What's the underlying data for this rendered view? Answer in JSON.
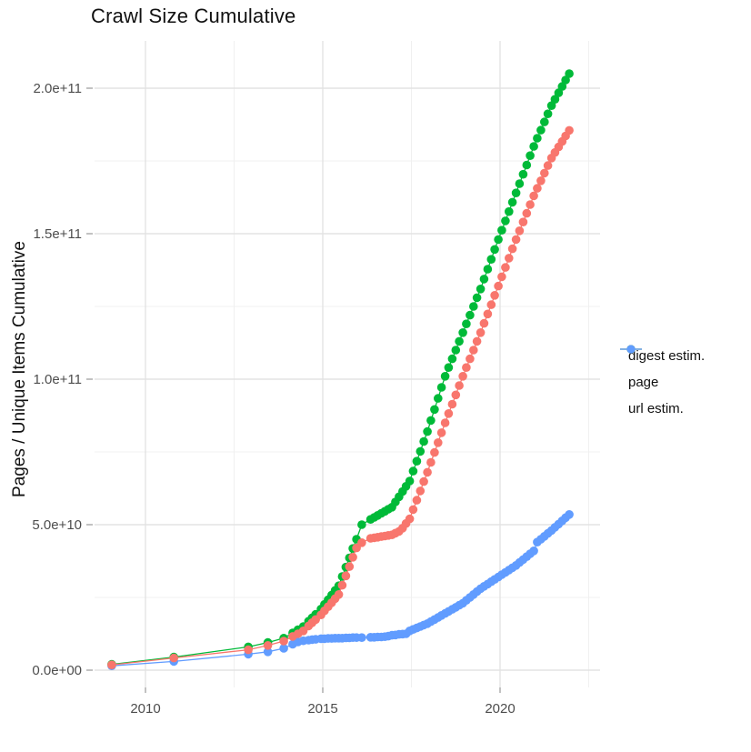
{
  "title": "Crawl Size Cumulative",
  "axes": {
    "y_label": "Pages / Unique Items Cumulative",
    "x_label": "",
    "x_ticks": [
      {
        "label": "2010",
        "year": 2010
      },
      {
        "label": "2015",
        "year": 2015
      },
      {
        "label": "2020",
        "year": 2020
      }
    ],
    "x_minor": [
      2012.5,
      2017.5,
      2022.5
    ],
    "y_ticks": [
      {
        "label": "0.0e+00",
        "value_e9": 0
      },
      {
        "label": "5.0e+10",
        "value_e9": 50
      },
      {
        "label": "1.0e+11",
        "value_e9": 100
      },
      {
        "label": "1.5e+11",
        "value_e9": 150
      },
      {
        "label": "2.0e+11",
        "value_e9": 200
      }
    ],
    "y_minor_e9": [
      25,
      75,
      125,
      175
    ]
  },
  "legend": [
    {
      "label": "digest estim.",
      "color": "#F8766D"
    },
    {
      "label": "page",
      "color": "#00BA38"
    },
    {
      "label": "url estim.",
      "color": "#619CFF"
    }
  ],
  "colors": {
    "digest_estim": "#F8766D",
    "page": "#00BA38",
    "url_estim": "#619CFF",
    "grid_major": "#E3E3E3",
    "grid_minor": "#F0F0F0",
    "tick_mark": "#999999",
    "tick_text": "#4D4D4D",
    "text": "#111111",
    "background": "#FFFFFF"
  },
  "chart_data": {
    "type": "line",
    "markers": true,
    "title": "Crawl Size Cumulative",
    "xlabel": "",
    "ylabel": "Pages / Unique Items Cumulative",
    "value_unit_multiplier": 1000000000.0,
    "xlim": [
      2008.5,
      2022.7
    ],
    "ylim_e9": [
      0,
      218
    ],
    "grid": true,
    "legend_position": "right",
    "x": [
      2009.05,
      2010.8,
      2012.9,
      2013.45,
      2013.9,
      2014.15,
      2014.3,
      2014.45,
      2014.6,
      2014.7,
      2014.8,
      2014.95,
      2015.05,
      2015.15,
      2015.25,
      2015.35,
      2015.45,
      2015.55,
      2015.65,
      2015.75,
      2015.85,
      2015.95,
      2016.1,
      2016.35,
      2016.45,
      2016.55,
      2016.65,
      2016.75,
      2016.85,
      2016.95,
      2017.05,
      2017.15,
      2017.25,
      2017.35,
      2017.45,
      2017.55,
      2017.65,
      2017.75,
      2017.85,
      2017.95,
      2018.05,
      2018.15,
      2018.25,
      2018.35,
      2018.45,
      2018.55,
      2018.65,
      2018.75,
      2018.85,
      2018.95,
      2019.05,
      2019.15,
      2019.25,
      2019.35,
      2019.45,
      2019.55,
      2019.65,
      2019.75,
      2019.85,
      2019.95,
      2020.05,
      2020.15,
      2020.25,
      2020.35,
      2020.45,
      2020.55,
      2020.65,
      2020.75,
      2020.85,
      2020.95,
      2021.05,
      2021.15,
      2021.25,
      2021.35,
      2021.45,
      2021.55,
      2021.65,
      2021.75,
      2021.85,
      2021.95
    ],
    "series": [
      {
        "name": "digest estim.",
        "color": "#F8766D",
        "values_e9": [
          1.8,
          4.2,
          7,
          8.5,
          10,
          11.6,
          12.5,
          13.5,
          15.2,
          16.3,
          17.4,
          19,
          20.4,
          21.8,
          23.2,
          24.6,
          26,
          29.2,
          32.4,
          35.6,
          38.8,
          42,
          43.8,
          45.3,
          45.5,
          45.7,
          45.9,
          46.1,
          46.3,
          46.5,
          47.1,
          47.7,
          48.8,
          50.4,
          52,
          55.2,
          58.4,
          61.6,
          64.8,
          68,
          71.4,
          74.8,
          78.2,
          81.6,
          85,
          88.2,
          91.4,
          94.6,
          97.8,
          101,
          104,
          107,
          110,
          113,
          116,
          119.2,
          122.4,
          125.6,
          128.8,
          132,
          135.2,
          138.4,
          141.6,
          144.8,
          148,
          151,
          154,
          157,
          160,
          163,
          165.6,
          168.2,
          170.8,
          173.4,
          176,
          177.9,
          179.8,
          181.7,
          183.6,
          185.5
        ]
      },
      {
        "name": "page",
        "color": "#00BA38",
        "values_e9": [
          2,
          4.5,
          8,
          9.5,
          11,
          12.8,
          13.9,
          15,
          16.8,
          18,
          19.2,
          21,
          22.6,
          24.2,
          25.8,
          27.4,
          29,
          32.2,
          35.4,
          38.6,
          41.8,
          45,
          50,
          51.8,
          52.5,
          53.2,
          53.9,
          54.6,
          55.3,
          56,
          57.8,
          59.6,
          61.4,
          63.2,
          65,
          68.4,
          71.8,
          75.2,
          78.6,
          82,
          85.8,
          89.6,
          93.4,
          97.2,
          101,
          104,
          107,
          110,
          113,
          116,
          119,
          122,
          125,
          128,
          131,
          134.4,
          137.8,
          141.2,
          144.6,
          148,
          151.2,
          154.4,
          157.6,
          160.8,
          164,
          167.2,
          170.4,
          173.6,
          176.8,
          180,
          182.8,
          185.6,
          188.4,
          191.2,
          194,
          196.2,
          198.4,
          200.6,
          202.8,
          205
        ]
      },
      {
        "name": "url estim.",
        "color": "#619CFF",
        "values_e9": [
          1.5,
          3,
          5.5,
          6.3,
          7.5,
          8.9,
          9.7,
          10.1,
          10.3,
          10.5,
          10.6,
          10.8,
          10.8,
          10.9,
          10.9,
          11,
          11,
          11,
          11.1,
          11.1,
          11.2,
          11.2,
          11.2,
          11.3,
          11.3,
          11.4,
          11.4,
          11.5,
          11.7,
          12,
          12.1,
          12.3,
          12.4,
          12.5,
          13.5,
          14,
          14.5,
          15,
          15.5,
          16,
          16.7,
          17.4,
          18.1,
          18.8,
          19.5,
          20.2,
          20.9,
          21.6,
          22.3,
          23,
          24,
          25,
          26,
          27,
          28,
          28.8,
          29.6,
          30.4,
          31.2,
          32,
          32.8,
          33.6,
          34.4,
          35.2,
          36,
          37,
          38,
          39,
          40,
          41,
          44,
          45,
          46,
          47,
          48,
          49.1,
          50.2,
          51.3,
          52.4,
          53.5
        ]
      }
    ]
  }
}
